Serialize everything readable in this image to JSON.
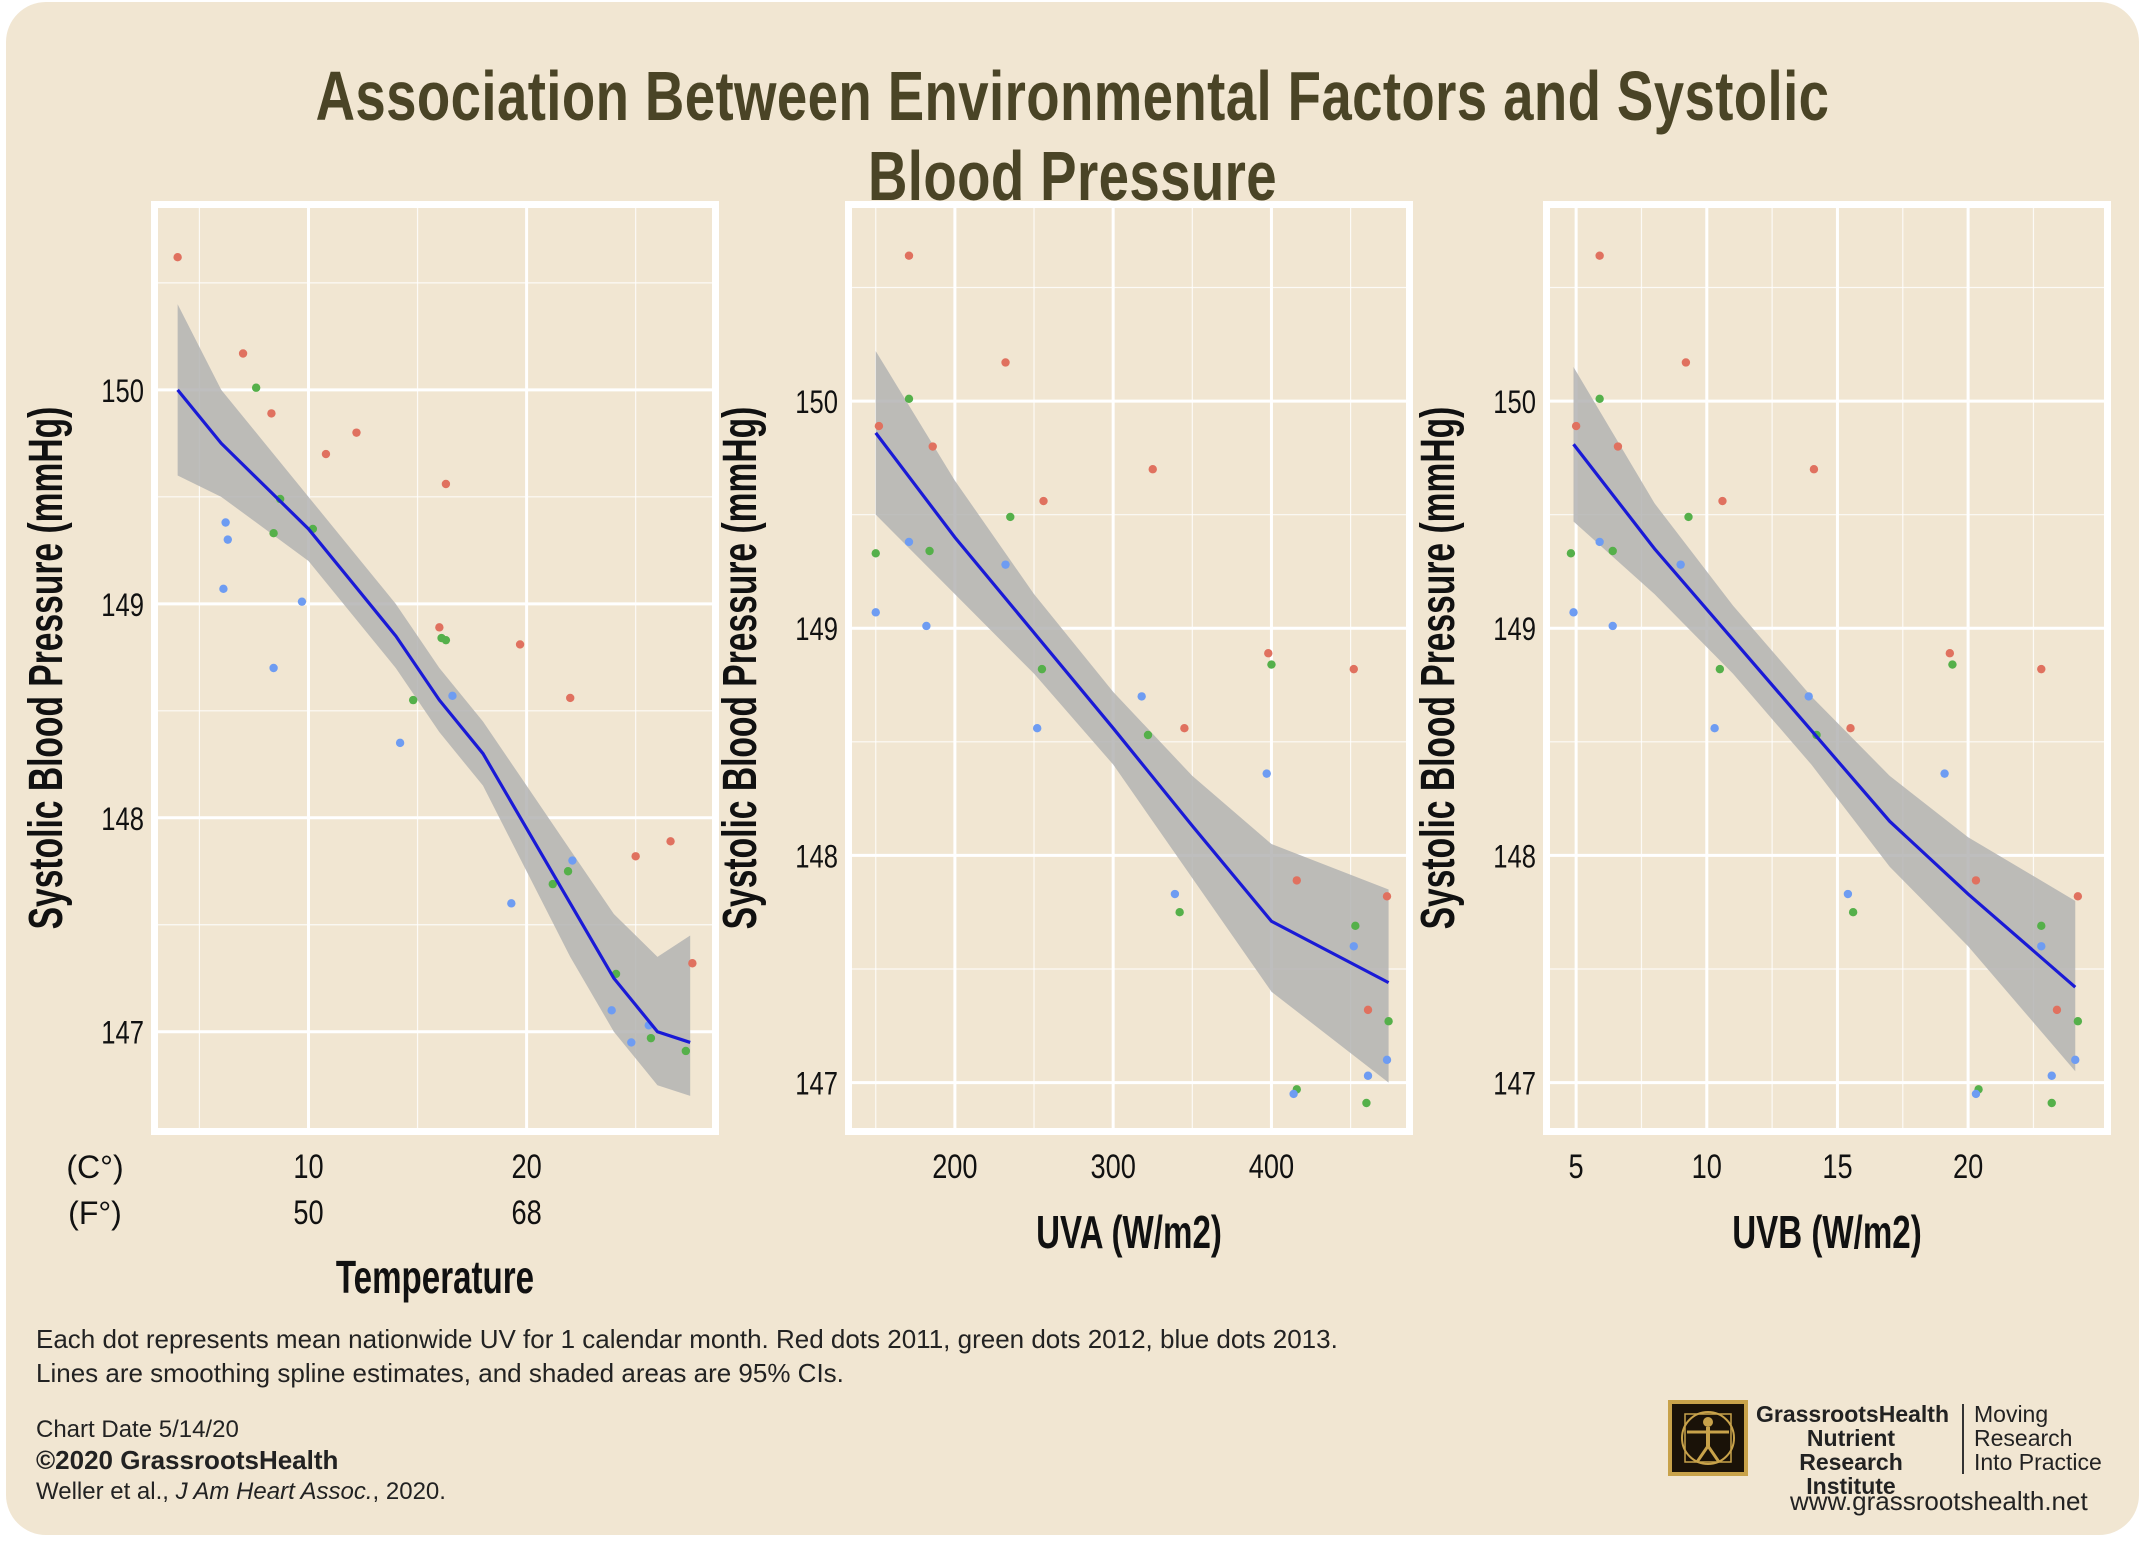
{
  "header": {
    "title": "Association Between Environmental Factors and Systolic Blood Pressure"
  },
  "colors": {
    "y2011": "#e0715f",
    "y2012": "#55b04a",
    "y2013": "#6e9cf2",
    "fit_line": "#1a1ad6",
    "ci_band": "#b3b3b3",
    "panel_bg": "#f1e6d2",
    "grid": "#ffffff"
  },
  "chart_data": [
    {
      "type": "scatter",
      "ylabel": "Systolic Blood Pressure (mmHg)",
      "xlabel": "Temperature",
      "xlim": [
        3.1,
        28.5
      ],
      "ylim": [
        146.55,
        150.85
      ],
      "x_ticks": [
        10,
        20
      ],
      "y_ticks": [
        147,
        148,
        149,
        150
      ],
      "secondary_axis": {
        "unit_primary": "(C°)",
        "unit_secondary": "(F°)",
        "labels": [
          "50",
          "68"
        ]
      },
      "series": [
        {
          "name": "2011",
          "color_key": "y2011",
          "points": [
            [
              4,
              150.62
            ],
            [
              7,
              150.17
            ],
            [
              8.3,
              149.89
            ],
            [
              10.8,
              149.7
            ],
            [
              12.2,
              149.8
            ],
            [
              16.3,
              149.56
            ],
            [
              16,
              148.89
            ],
            [
              19.7,
              148.81
            ],
            [
              22,
              148.56
            ],
            [
              25,
              147.82
            ],
            [
              26.6,
              147.89
            ],
            [
              27.6,
              147.32
            ]
          ]
        },
        {
          "name": "2012",
          "color_key": "y2012",
          "points": [
            [
              7.6,
              150.01
            ],
            [
              8.7,
              149.49
            ],
            [
              8.4,
              149.33
            ],
            [
              10.2,
              149.35
            ],
            [
              14.8,
              148.55
            ],
            [
              16.1,
              148.84
            ],
            [
              16.3,
              148.83
            ],
            [
              21.2,
              147.69
            ],
            [
              21.9,
              147.75
            ],
            [
              24.1,
              147.27
            ],
            [
              25.7,
              146.97
            ],
            [
              27.3,
              146.91
            ]
          ]
        },
        {
          "name": "2013",
          "color_key": "y2013",
          "points": [
            [
              6.2,
              149.38
            ],
            [
              6.3,
              149.3
            ],
            [
              6.1,
              149.07
            ],
            [
              8.4,
              148.7
            ],
            [
              9.7,
              149.01
            ],
            [
              14.2,
              148.35
            ],
            [
              16.6,
              148.57
            ],
            [
              19.3,
              147.6
            ],
            [
              22.1,
              147.8
            ],
            [
              23.9,
              147.1
            ],
            [
              24.8,
              146.95
            ],
            [
              25.6,
              147.03
            ]
          ]
        }
      ],
      "fit": {
        "line": [
          [
            4,
            150
          ],
          [
            6,
            149.75
          ],
          [
            8,
            149.55
          ],
          [
            10,
            149.35
          ],
          [
            12,
            149.1
          ],
          [
            14,
            148.85
          ],
          [
            16,
            148.55
          ],
          [
            18,
            148.3
          ],
          [
            20,
            147.95
          ],
          [
            22,
            147.6
          ],
          [
            24,
            147.25
          ],
          [
            26,
            147.0
          ],
          [
            27.5,
            146.95
          ]
        ],
        "ci_upper": [
          [
            4,
            150.4
          ],
          [
            6,
            150.0
          ],
          [
            8,
            149.75
          ],
          [
            10,
            149.5
          ],
          [
            12,
            149.25
          ],
          [
            14,
            149.0
          ],
          [
            16,
            148.7
          ],
          [
            18,
            148.45
          ],
          [
            20,
            148.15
          ],
          [
            22,
            147.85
          ],
          [
            24,
            147.55
          ],
          [
            26,
            147.35
          ],
          [
            27.5,
            147.45
          ]
        ],
        "ci_lower": [
          [
            4,
            149.6
          ],
          [
            6,
            149.5
          ],
          [
            8,
            149.35
          ],
          [
            10,
            149.2
          ],
          [
            12,
            148.95
          ],
          [
            14,
            148.7
          ],
          [
            16,
            148.4
          ],
          [
            18,
            148.15
          ],
          [
            20,
            147.75
          ],
          [
            22,
            147.35
          ],
          [
            24,
            147.0
          ],
          [
            26,
            146.75
          ],
          [
            27.5,
            146.7
          ]
        ]
      }
    },
    {
      "type": "scatter",
      "ylabel": "Systolic Blood Pressure (mmHg)",
      "xlabel": "UVA (W/m2)",
      "xlim": [
        135,
        485
      ],
      "ylim": [
        146.8,
        150.85
      ],
      "x_ticks": [
        200,
        300,
        400
      ],
      "y_ticks": [
        147,
        148,
        149,
        150
      ],
      "series": [
        {
          "name": "2011",
          "color_key": "y2011",
          "points": [
            [
              152,
              149.89
            ],
            [
              171,
              150.64
            ],
            [
              186,
              149.8
            ],
            [
              232,
              150.17
            ],
            [
              256,
              149.56
            ],
            [
              325,
              149.7
            ],
            [
              345,
              148.56
            ],
            [
              398,
              148.89
            ],
            [
              416,
              147.89
            ],
            [
              452,
              148.82
            ],
            [
              461,
              147.32
            ],
            [
              473,
              147.82
            ]
          ]
        },
        {
          "name": "2012",
          "color_key": "y2012",
          "points": [
            [
              150,
              149.33
            ],
            [
              171,
              150.01
            ],
            [
              184,
              149.34
            ],
            [
              235,
              149.49
            ],
            [
              255,
              148.82
            ],
            [
              322,
              148.53
            ],
            [
              342,
              147.75
            ],
            [
              400,
              148.84
            ],
            [
              416,
              146.97
            ],
            [
              453,
              147.69
            ],
            [
              460,
              146.91
            ],
            [
              474,
              147.27
            ]
          ]
        },
        {
          "name": "2013",
          "color_key": "y2013",
          "points": [
            [
              150,
              149.07
            ],
            [
              171,
              149.38
            ],
            [
              182,
              149.01
            ],
            [
              232,
              149.28
            ],
            [
              252,
              148.56
            ],
            [
              318,
              148.7
            ],
            [
              339,
              147.83
            ],
            [
              397,
              148.36
            ],
            [
              414,
              146.95
            ],
            [
              452,
              147.6
            ],
            [
              461,
              147.03
            ],
            [
              473,
              147.1
            ]
          ]
        }
      ],
      "fit": {
        "line": [
          [
            150,
            149.86
          ],
          [
            200,
            149.4
          ],
          [
            250,
            148.98
          ],
          [
            300,
            148.56
          ],
          [
            350,
            148.13
          ],
          [
            400,
            147.71
          ],
          [
            474,
            147.44
          ]
        ],
        "ci_upper": [
          [
            150,
            150.22
          ],
          [
            200,
            149.65
          ],
          [
            250,
            149.15
          ],
          [
            300,
            148.72
          ],
          [
            350,
            148.35
          ],
          [
            400,
            148.05
          ],
          [
            474,
            147.85
          ]
        ],
        "ci_lower": [
          [
            150,
            149.5
          ],
          [
            200,
            149.15
          ],
          [
            250,
            148.8
          ],
          [
            300,
            148.4
          ],
          [
            350,
            147.9
          ],
          [
            400,
            147.4
          ],
          [
            474,
            147.0
          ]
        ]
      }
    },
    {
      "type": "scatter",
      "ylabel": "Systolic Blood Pressure (mmHg)",
      "xlabel": "UVB (W/m2)",
      "xlim": [
        4.0,
        25.2
      ],
      "ylim": [
        146.8,
        150.85
      ],
      "x_ticks": [
        5,
        10,
        15,
        20
      ],
      "y_ticks": [
        147,
        148,
        149,
        150
      ],
      "series": [
        {
          "name": "2011",
          "color_key": "y2011",
          "points": [
            [
              5,
              149.89
            ],
            [
              5.9,
              150.64
            ],
            [
              6.6,
              149.8
            ],
            [
              9.2,
              150.17
            ],
            [
              10.6,
              149.56
            ],
            [
              14.1,
              149.7
            ],
            [
              15.5,
              148.56
            ],
            [
              19.3,
              148.89
            ],
            [
              20.3,
              147.89
            ],
            [
              22.8,
              148.82
            ],
            [
              23.4,
              147.32
            ],
            [
              24.2,
              147.82
            ]
          ]
        },
        {
          "name": "2012",
          "color_key": "y2012",
          "points": [
            [
              4.8,
              149.33
            ],
            [
              5.9,
              150.01
            ],
            [
              6.4,
              149.34
            ],
            [
              9.3,
              149.49
            ],
            [
              10.5,
              148.82
            ],
            [
              14.2,
              148.53
            ],
            [
              15.6,
              147.75
            ],
            [
              19.4,
              148.84
            ],
            [
              20.4,
              146.97
            ],
            [
              22.8,
              147.69
            ],
            [
              23.2,
              146.91
            ],
            [
              24.2,
              147.27
            ]
          ]
        },
        {
          "name": "2013",
          "color_key": "y2013",
          "points": [
            [
              4.9,
              149.07
            ],
            [
              5.9,
              149.38
            ],
            [
              6.4,
              149.01
            ],
            [
              9.0,
              149.28
            ],
            [
              10.3,
              148.56
            ],
            [
              13.9,
              148.7
            ],
            [
              15.4,
              147.83
            ],
            [
              19.1,
              148.36
            ],
            [
              20.3,
              146.95
            ],
            [
              22.8,
              147.6
            ],
            [
              23.2,
              147.03
            ],
            [
              24.1,
              147.1
            ]
          ]
        }
      ],
      "fit": {
        "line": [
          [
            4.9,
            149.81
          ],
          [
            8,
            149.35
          ],
          [
            11,
            148.95
          ],
          [
            14,
            148.55
          ],
          [
            17,
            148.15
          ],
          [
            20,
            147.83
          ],
          [
            24.1,
            147.42
          ]
        ],
        "ci_upper": [
          [
            4.9,
            150.15
          ],
          [
            8,
            149.55
          ],
          [
            11,
            149.1
          ],
          [
            14,
            148.7
          ],
          [
            17,
            148.35
          ],
          [
            20,
            148.08
          ],
          [
            24.1,
            147.8
          ]
        ],
        "ci_lower": [
          [
            4.9,
            149.47
          ],
          [
            8,
            149.15
          ],
          [
            11,
            148.8
          ],
          [
            14,
            148.4
          ],
          [
            17,
            147.95
          ],
          [
            20,
            147.6
          ],
          [
            24.1,
            147.05
          ]
        ]
      }
    }
  ],
  "footer": {
    "note_line1": "Each dot represents mean nationwide UV for 1 calendar month.  Red dots 2011, green dots 2012, blue dots 2013.",
    "note_line2": "Lines are smoothing spline estimates, and shaded areas are 95% CIs.",
    "chart_date": "Chart Date 5/14/20",
    "copyright": "©2020 GrassrootsHealth",
    "citation_authors": "Weller et al., ",
    "citation_journal": "J Am Heart Assoc.",
    "citation_year": ", 2020.",
    "logo_line1": "GrassrootsHealth",
    "logo_line2": "Nutrient",
    "logo_line3": "Research Institute",
    "tagline1": "Moving",
    "tagline2": "Research",
    "tagline3": "Into Practice",
    "website": "www.grassrootshealth.net"
  }
}
